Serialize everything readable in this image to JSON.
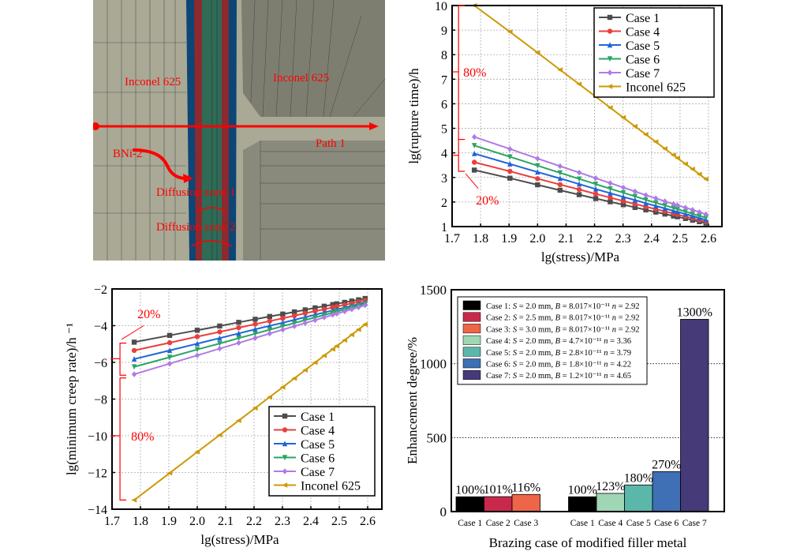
{
  "fea_model": {
    "labels": {
      "inconel_left": "Inconel 625",
      "inconel_right": "Inconel 625",
      "path": "Path 1",
      "bni2": "BNi-2",
      "diffusion_zone_1": "Diffusion zone 1",
      "diffusion_zone_2": "Diffusion zone 2"
    },
    "colors": {
      "base_metal": "#a9a996",
      "base_metal_dark": "#7e7e70",
      "diffusion_zone_2": "#0b4676",
      "diffusion_zone_1": "#8c2a2f",
      "filler_bni2": "#2f6b55",
      "annotation": "#ff0000"
    }
  },
  "chart_data": [
    {
      "id": "rupture_time",
      "type": "line",
      "title": "",
      "xlabel": "lg(stress)/MPa",
      "ylabel": "lg(rupture time)/h",
      "xlim": [
        1.7,
        2.6
      ],
      "ylim": [
        1,
        10
      ],
      "xticks": [
        "1.7",
        "1.8",
        "1.9",
        "2.0",
        "2.1",
        "2.2",
        "2.3",
        "2.4",
        "2.5",
        "2.6"
      ],
      "yticks": [
        "1",
        "2",
        "3",
        "4",
        "5",
        "6",
        "7",
        "8",
        "9",
        "10"
      ],
      "grid": true,
      "legend_position": "top-right",
      "x": [
        1.778,
        1.903,
        2.0,
        2.079,
        2.146,
        2.204,
        2.255,
        2.301,
        2.342,
        2.38,
        2.415,
        2.447,
        2.477,
        2.491,
        2.519,
        2.544,
        2.568,
        2.591
      ],
      "series": [
        {
          "name": "Case 1",
          "color": "#4d4d4d",
          "marker": "square",
          "values": [
            3.3,
            2.97,
            2.7,
            2.48,
            2.3,
            2.14,
            2.01,
            1.89,
            1.78,
            1.68,
            1.59,
            1.51,
            1.43,
            1.4,
            1.33,
            1.26,
            1.2,
            1.14
          ]
        },
        {
          "name": "Case 4",
          "color": "#e8403c",
          "marker": "circle",
          "values": [
            3.62,
            3.25,
            2.95,
            2.71,
            2.51,
            2.33,
            2.18,
            2.04,
            1.92,
            1.81,
            1.71,
            1.62,
            1.53,
            1.49,
            1.41,
            1.34,
            1.27,
            1.2
          ]
        },
        {
          "name": "Case 5",
          "color": "#1f64d8",
          "marker": "triangle-up",
          "values": [
            3.97,
            3.55,
            3.22,
            2.96,
            2.73,
            2.53,
            2.36,
            2.21,
            2.08,
            1.95,
            1.84,
            1.74,
            1.64,
            1.6,
            1.51,
            1.43,
            1.35,
            1.27
          ]
        },
        {
          "name": "Case 6",
          "color": "#2aa563",
          "marker": "triangle-down",
          "values": [
            4.3,
            3.84,
            3.48,
            3.19,
            2.94,
            2.73,
            2.54,
            2.38,
            2.23,
            2.09,
            1.97,
            1.86,
            1.76,
            1.71,
            1.61,
            1.52,
            1.44,
            1.36
          ]
        },
        {
          "name": "Case 7",
          "color": "#b07ae6",
          "marker": "diamond",
          "values": [
            4.65,
            4.16,
            3.77,
            3.46,
            3.2,
            2.97,
            2.77,
            2.59,
            2.43,
            2.28,
            2.15,
            2.03,
            1.92,
            1.87,
            1.77,
            1.68,
            1.59,
            1.5
          ]
        },
        {
          "name": "Inconel 625",
          "color": "#cc9a06",
          "marker": "triangle-left",
          "values": [
            10.0,
            8.93,
            8.08,
            7.38,
            6.8,
            6.29,
            5.84,
            5.44,
            5.08,
            4.75,
            4.45,
            4.17,
            3.91,
            3.79,
            3.55,
            3.34,
            3.13,
            2.93
          ]
        }
      ],
      "annotations": [
        {
          "text": "80%",
          "color": "#ff0000"
        },
        {
          "text": "20%",
          "color": "#ff0000"
        }
      ]
    },
    {
      "id": "min_creep_rate",
      "type": "line",
      "title": "",
      "xlabel": "lg(stress)/MPa",
      "ylabel": "lg(minimum creep rate)/h ⁻¹",
      "xlim": [
        1.7,
        2.6
      ],
      "ylim": [
        -14,
        -2
      ],
      "xticks": [
        "1.7",
        "1.8",
        "1.9",
        "2.0",
        "2.1",
        "2.2",
        "2.3",
        "2.4",
        "2.5",
        "2.6"
      ],
      "yticks": [
        "−14",
        "−12",
        "−10",
        "−8",
        "−6",
        "−4",
        "−2"
      ],
      "ytick_values": [
        -14,
        -12,
        -10,
        -8,
        -6,
        -4,
        -2
      ],
      "grid": true,
      "legend_position": "bottom-right",
      "x": [
        1.778,
        1.903,
        2.0,
        2.079,
        2.146,
        2.204,
        2.255,
        2.301,
        2.342,
        2.38,
        2.415,
        2.447,
        2.477,
        2.491,
        2.519,
        2.544,
        2.568,
        2.591
      ],
      "series": [
        {
          "name": "Case 1",
          "color": "#4d4d4d",
          "marker": "square",
          "values": [
            -4.9,
            -4.53,
            -4.25,
            -4.02,
            -3.82,
            -3.65,
            -3.5,
            -3.37,
            -3.25,
            -3.14,
            -3.03,
            -2.94,
            -2.85,
            -2.81,
            -2.73,
            -2.66,
            -2.59,
            -2.52
          ]
        },
        {
          "name": "Case 4",
          "color": "#e8403c",
          "marker": "circle",
          "values": [
            -5.35,
            -4.93,
            -4.6,
            -4.34,
            -4.11,
            -3.92,
            -3.75,
            -3.6,
            -3.46,
            -3.33,
            -3.21,
            -3.11,
            -3.01,
            -2.96,
            -2.87,
            -2.79,
            -2.71,
            -2.63
          ]
        },
        {
          "name": "Case 5",
          "color": "#1f64d8",
          "marker": "triangle-up",
          "values": [
            -5.82,
            -5.35,
            -4.98,
            -4.68,
            -4.42,
            -4.2,
            -4.01,
            -3.84,
            -3.68,
            -3.54,
            -3.4,
            -3.28,
            -3.17,
            -3.12,
            -3.02,
            -2.92,
            -2.83,
            -2.74
          ]
        },
        {
          "name": "Case 6",
          "color": "#2aa563",
          "marker": "triangle-down",
          "values": [
            -6.24,
            -5.72,
            -5.3,
            -4.97,
            -4.68,
            -4.44,
            -4.22,
            -4.03,
            -3.86,
            -3.7,
            -3.55,
            -3.42,
            -3.29,
            -3.23,
            -3.12,
            -3.01,
            -2.91,
            -2.81
          ]
        },
        {
          "name": "Case 7",
          "color": "#b07ae6",
          "marker": "diamond",
          "values": [
            -6.65,
            -6.07,
            -5.62,
            -5.25,
            -4.94,
            -4.67,
            -4.43,
            -4.22,
            -4.03,
            -3.86,
            -3.7,
            -3.55,
            -3.41,
            -3.35,
            -3.22,
            -3.11,
            -3.0,
            -2.89
          ]
        },
        {
          "name": "Inconel 625",
          "color": "#cc9a06",
          "marker": "triangle-left",
          "values": [
            -13.5,
            -12.03,
            -10.88,
            -9.96,
            -9.17,
            -8.49,
            -7.89,
            -7.35,
            -6.87,
            -6.42,
            -6.01,
            -5.63,
            -5.28,
            -5.11,
            -4.79,
            -4.49,
            -4.21,
            -3.93
          ]
        }
      ],
      "annotations": [
        {
          "text": "20%",
          "color": "#ff0000"
        },
        {
          "text": "80%",
          "color": "#ff0000"
        }
      ]
    },
    {
      "id": "enhancement_degree",
      "type": "bar",
      "title": "",
      "xlabel": "Brazing case of modified filler metal",
      "ylabel": "Enhancement degree/%",
      "ylim": [
        0,
        1500
      ],
      "yticks": [
        "0",
        "500",
        "1000",
        "1500"
      ],
      "ytick_values": [
        0,
        500,
        1000,
        1500
      ],
      "grid": "horizontal-dotted",
      "legend_position": "top-left",
      "groups": [
        {
          "categories": [
            "Case 1",
            "Case 2",
            "Case 3"
          ],
          "values": [
            100,
            101,
            116
          ],
          "labels": [
            "100%",
            "101%",
            "116%"
          ],
          "colors": [
            "#000000",
            "#c8294b",
            "#ee6547"
          ]
        },
        {
          "categories": [
            "Case 1",
            "Case 4",
            "Case 5",
            "Case 6",
            "Case 7"
          ],
          "values": [
            100,
            123,
            180,
            270,
            1300
          ],
          "labels": [
            "100%",
            "123%",
            "180%",
            "270%",
            "1300%"
          ],
          "colors": [
            "#000000",
            "#9fd6b4",
            "#5bb7a9",
            "#3f6fb4",
            "#463a78"
          ]
        }
      ],
      "legend": [
        {
          "case": "Case 1:",
          "S": "2.0 mm",
          "B": "8.017×10⁻¹¹",
          "n": "2.92",
          "color": "#000000"
        },
        {
          "case": "Case 2:",
          "S": "2.5 mm",
          "B": "8.017×10⁻¹¹",
          "n": "2.92",
          "color": "#c8294b"
        },
        {
          "case": "Case 3:",
          "S": "3.0 mm",
          "B": "8.017×10⁻¹¹",
          "n": "2.92",
          "color": "#ee6547"
        },
        {
          "case": "Case 4:",
          "S": "2.0 mm",
          "B": "4.7×10⁻¹¹",
          "n": "3.36",
          "color": "#9fd6b4"
        },
        {
          "case": "Case 5:",
          "S": "2.0 mm",
          "B": "2.8×10⁻¹¹",
          "n": "3.79",
          "color": "#5bb7a9"
        },
        {
          "case": "Case 6:",
          "S": "2.0 mm",
          "B": "1.8×10⁻¹¹",
          "n": "4.22",
          "color": "#3f6fb4"
        },
        {
          "case": "Case 7:",
          "S": "2.0 mm",
          "B": "1.2×10⁻¹¹",
          "n": "4.65",
          "color": "#463a78"
        }
      ]
    }
  ]
}
